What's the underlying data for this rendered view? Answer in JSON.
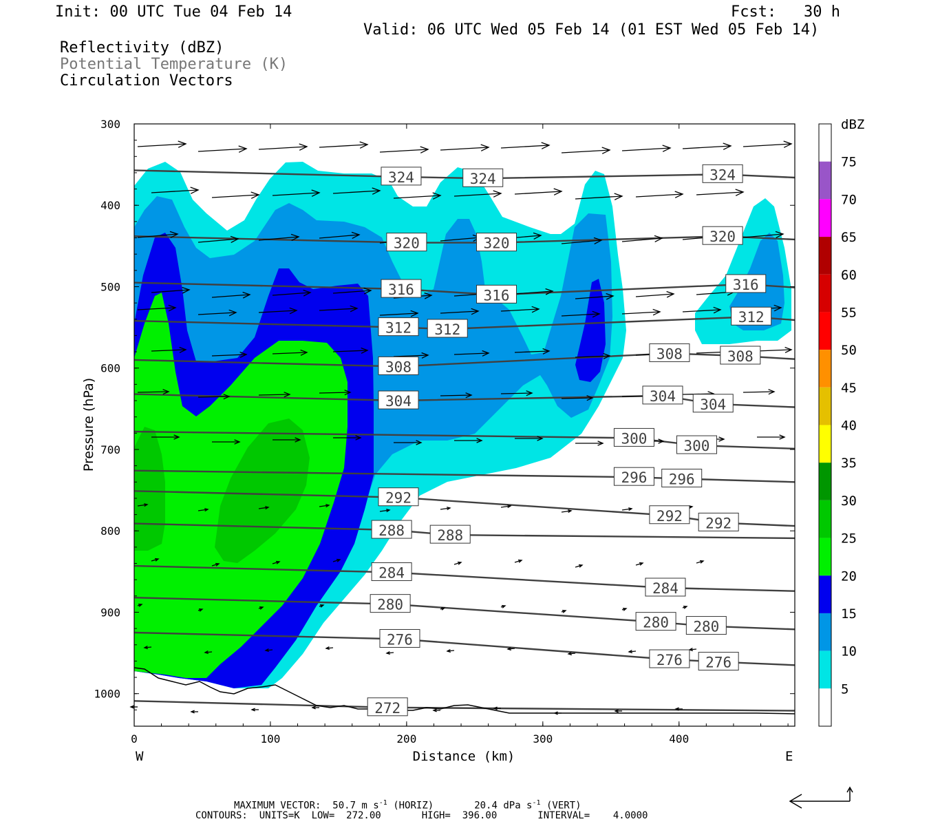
{
  "header": {
    "init": "Init: 00 UTC Tue 04 Feb 14",
    "fcst": "Fcst:   30 h",
    "valid": "Valid: 06 UTC Wed 05 Feb 14 (01 EST Wed 05 Feb 14)",
    "field1": "Reflectivity (dBZ)",
    "field2": "Potential Temperature (K)",
    "field3": "Circulation Vectors"
  },
  "footer": {
    "max_vector_prefix": "MAXIMUM VECTOR:  50.7 m s",
    "max_vector_sup1": "-1",
    "max_vector_mid": " (HORIZ)       20.4 dPa s",
    "max_vector_sup2": "-1",
    "max_vector_suffix": " (VERT)",
    "contours": "CONTOURS:  UNITS=K  LOW=  272.00       HIGH=  396.00       INTERVAL=    4.0000"
  },
  "chart_data": {
    "type": "cross-section",
    "xlabel": "Distance (km)",
    "ylabel": "Pressure (hPa)",
    "xlim": [
      0,
      485
    ],
    "ylim": [
      1040,
      300
    ],
    "x_ticks": [
      "0",
      "100",
      "200",
      "300",
      "400"
    ],
    "y_ticks": [
      "300",
      "400",
      "500",
      "600",
      "700",
      "800",
      "900",
      "1000"
    ],
    "x_left_end": "W",
    "x_right_end": "E",
    "colorbar": {
      "unit": "dBZ",
      "levels": [
        "5",
        "10",
        "15",
        "20",
        "25",
        "30",
        "35",
        "40",
        "45",
        "50",
        "55",
        "60",
        "65",
        "70",
        "75"
      ],
      "colors": [
        "#ffffff",
        "#00e5e5",
        "#0096e6",
        "#0000ee",
        "#00f000",
        "#00c800",
        "#009600",
        "#ffff00",
        "#e5c000",
        "#ff9000",
        "#ff0000",
        "#d60000",
        "#b00000",
        "#ff00ff",
        "#9955c8",
        "#ffffff"
      ]
    },
    "theta_contour_labels": [
      {
        "value": "324",
        "x": 196,
        "p": 365
      },
      {
        "value": "324",
        "x": 256,
        "p": 367
      },
      {
        "value": "324",
        "x": 432,
        "p": 362
      },
      {
        "value": "320",
        "x": 200,
        "p": 446
      },
      {
        "value": "320",
        "x": 266,
        "p": 446
      },
      {
        "value": "320",
        "x": 432,
        "p": 438
      },
      {
        "value": "316",
        "x": 196,
        "p": 503
      },
      {
        "value": "316",
        "x": 266,
        "p": 510
      },
      {
        "value": "316",
        "x": 449,
        "p": 497
      },
      {
        "value": "312",
        "x": 194,
        "p": 550
      },
      {
        "value": "312",
        "x": 230,
        "p": 552
      },
      {
        "value": "312",
        "x": 453,
        "p": 537
      },
      {
        "value": "308",
        "x": 194,
        "p": 598
      },
      {
        "value": "308",
        "x": 393,
        "p": 582
      },
      {
        "value": "308",
        "x": 445,
        "p": 585
      },
      {
        "value": "304",
        "x": 194,
        "p": 640
      },
      {
        "value": "304",
        "x": 388,
        "p": 634
      },
      {
        "value": "304",
        "x": 425,
        "p": 644
      },
      {
        "value": "300",
        "x": 367,
        "p": 686
      },
      {
        "value": "300",
        "x": 413,
        "p": 695
      },
      {
        "value": "296",
        "x": 367,
        "p": 734
      },
      {
        "value": "296",
        "x": 402,
        "p": 736
      },
      {
        "value": "292",
        "x": 194,
        "p": 759
      },
      {
        "value": "292",
        "x": 393,
        "p": 781
      },
      {
        "value": "292",
        "x": 429,
        "p": 790
      },
      {
        "value": "288",
        "x": 189,
        "p": 799
      },
      {
        "value": "288",
        "x": 232,
        "p": 805
      },
      {
        "value": "284",
        "x": 189,
        "p": 851
      },
      {
        "value": "284",
        "x": 390,
        "p": 870
      },
      {
        "value": "280",
        "x": 188,
        "p": 890
      },
      {
        "value": "280",
        "x": 383,
        "p": 912
      },
      {
        "value": "280",
        "x": 420,
        "p": 917
      },
      {
        "value": "276",
        "x": 195,
        "p": 933
      },
      {
        "value": "276",
        "x": 393,
        "p": 958
      },
      {
        "value": "276",
        "x": 429,
        "p": 961
      },
      {
        "value": "272",
        "x": 186,
        "p": 1017
      }
    ]
  }
}
